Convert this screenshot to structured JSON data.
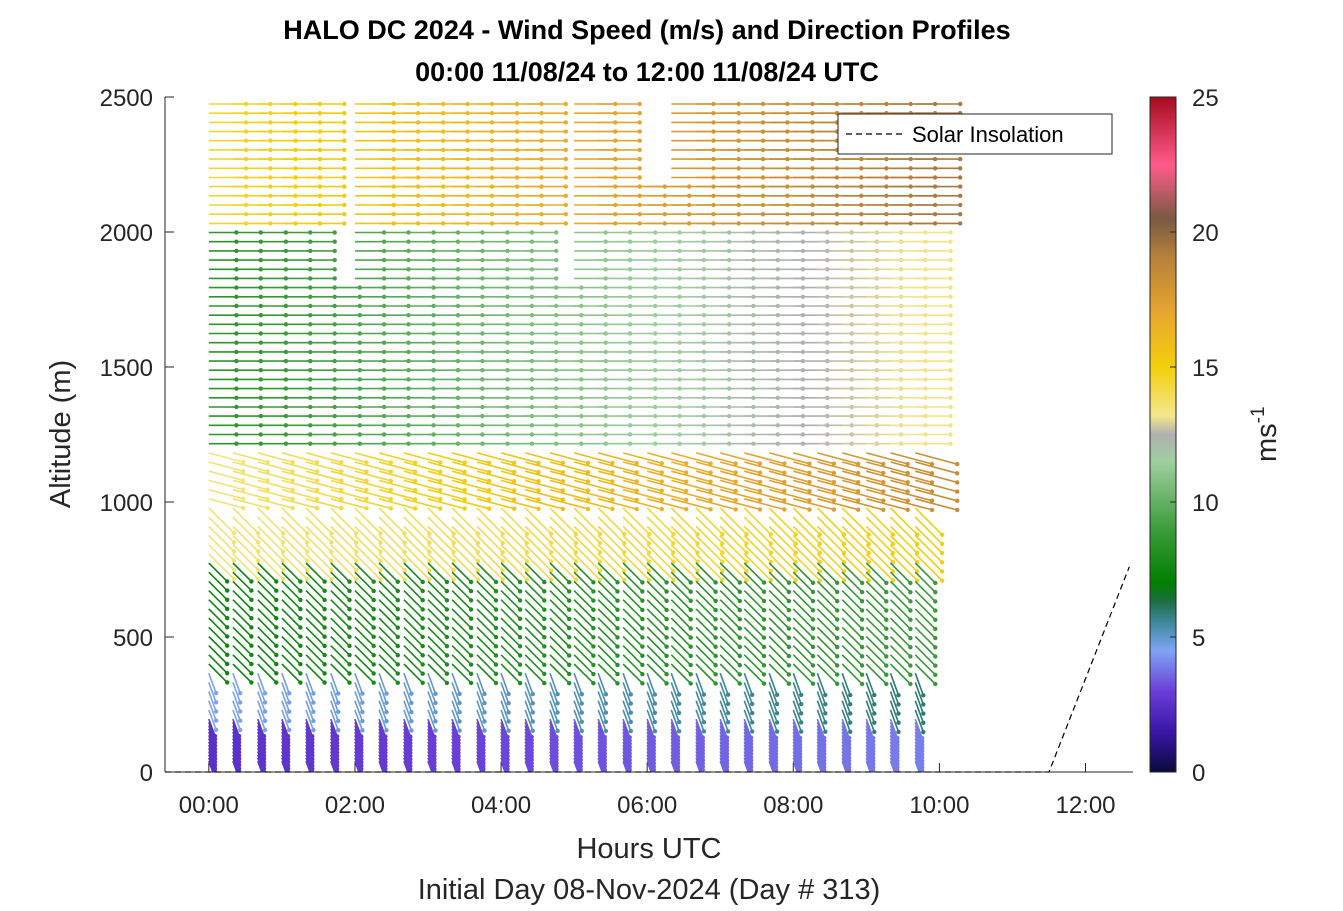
{
  "chart_data": {
    "type": "wind-barb-profile",
    "title": "HALO DC 2024 - Wind Speed (m/s) and Direction Profiles",
    "subtitle": "00:00 11/08/24 to 12:00 11/08/24  UTC",
    "xlabel": "Hours UTC",
    "xlabel2": "Initial Day 08-Nov-2024 (Day # 313)",
    "ylabel": "Altitude (m)",
    "x_ticks": [
      "00:00",
      "02:00",
      "04:00",
      "06:00",
      "08:00",
      "10:00",
      "12:00"
    ],
    "x_tick_hours": [
      0,
      2,
      4,
      6,
      8,
      10,
      12
    ],
    "xlim_hours": [
      -0.6,
      12.65
    ],
    "ylim": [
      0,
      2500
    ],
    "y_ticks": [
      "0",
      "500",
      "1000",
      "1500",
      "2000",
      "2500"
    ],
    "y_tick_values": [
      0,
      500,
      1000,
      1500,
      2000,
      2500
    ],
    "colorbar": {
      "label": "ms",
      "label_exponent": "-1",
      "range": [
        0,
        25
      ],
      "ticks": [
        "0",
        "5",
        "10",
        "15",
        "20",
        "25"
      ],
      "tick_values": [
        0,
        5,
        10,
        15,
        20,
        25
      ],
      "colors": [
        {
          "v": 0,
          "c": "#0a0a3c"
        },
        {
          "v": 1.5,
          "c": "#3a16a8"
        },
        {
          "v": 3,
          "c": "#6a3fd8"
        },
        {
          "v": 4.5,
          "c": "#7fa4f4"
        },
        {
          "v": 5.5,
          "c": "#3f8aa0"
        },
        {
          "v": 6.3,
          "c": "#1e6e46"
        },
        {
          "v": 7,
          "c": "#007f00"
        },
        {
          "v": 9,
          "c": "#3c9c3c"
        },
        {
          "v": 11.5,
          "c": "#9fcf9f"
        },
        {
          "v": 12.5,
          "c": "#b0b0b0"
        },
        {
          "v": 13.2,
          "c": "#f4e78c"
        },
        {
          "v": 15,
          "c": "#f2cf0c"
        },
        {
          "v": 17,
          "c": "#e8a62e"
        },
        {
          "v": 19,
          "c": "#b8823a"
        },
        {
          "v": 20.5,
          "c": "#7a5a44"
        },
        {
          "v": 22.5,
          "c": "#ff5b8a"
        },
        {
          "v": 25,
          "c": "#a50b1e"
        }
      ]
    },
    "legend": {
      "entries": [
        "Solar Insolation"
      ],
      "position": "top-right",
      "style": "dashed-black"
    },
    "solar_insolation_line": {
      "x_hours": [
        -0.6,
        11.5,
        12.6
      ],
      "y": [
        0,
        0,
        760
      ]
    },
    "profile_hours": [
      0.0,
      0.33,
      0.67,
      1.0,
      1.33,
      1.67,
      2.0,
      2.33,
      2.67,
      3.0,
      3.33,
      3.67,
      4.0,
      4.33,
      4.67,
      5.0,
      5.33,
      5.67,
      6.0,
      6.33,
      6.67,
      7.0,
      7.33,
      7.67,
      8.0,
      8.33,
      8.67,
      9.0,
      9.33,
      9.67
    ],
    "speed_layers": [
      {
        "z": [
          0,
          200
        ],
        "speed": 2.5
      },
      {
        "z": [
          200,
          400
        ],
        "speed": 4.5
      },
      {
        "z": [
          400,
          800
        ],
        "speed": 7.5
      },
      {
        "z": [
          800,
          1200
        ],
        "speed": 13.5
      },
      {
        "z": [
          1200,
          2000
        ],
        "speed": 8.5
      },
      {
        "z": [
          2000,
          2500
        ],
        "speed": 14.5
      }
    ],
    "direction_layers": [
      {
        "z": [
          0,
          400
        ],
        "direction_deg": 160
      },
      {
        "z": [
          400,
          1000
        ],
        "direction_deg": 135
      },
      {
        "z": [
          1000,
          1200
        ],
        "direction_deg": 105
      },
      {
        "z": [
          1200,
          2500
        ],
        "direction_deg": 90
      }
    ],
    "speed_trend_per_hour": 0.5,
    "data_gaps": [
      {
        "hours": [
          1.6,
          1.95
        ],
        "z": [
          1800,
          2500
        ]
      },
      {
        "hours": [
          4.5,
          4.8
        ],
        "z": [
          1800,
          2500
        ]
      },
      {
        "hours": [
          5.4,
          6.1
        ],
        "z": [
          2200,
          2500
        ]
      }
    ]
  }
}
